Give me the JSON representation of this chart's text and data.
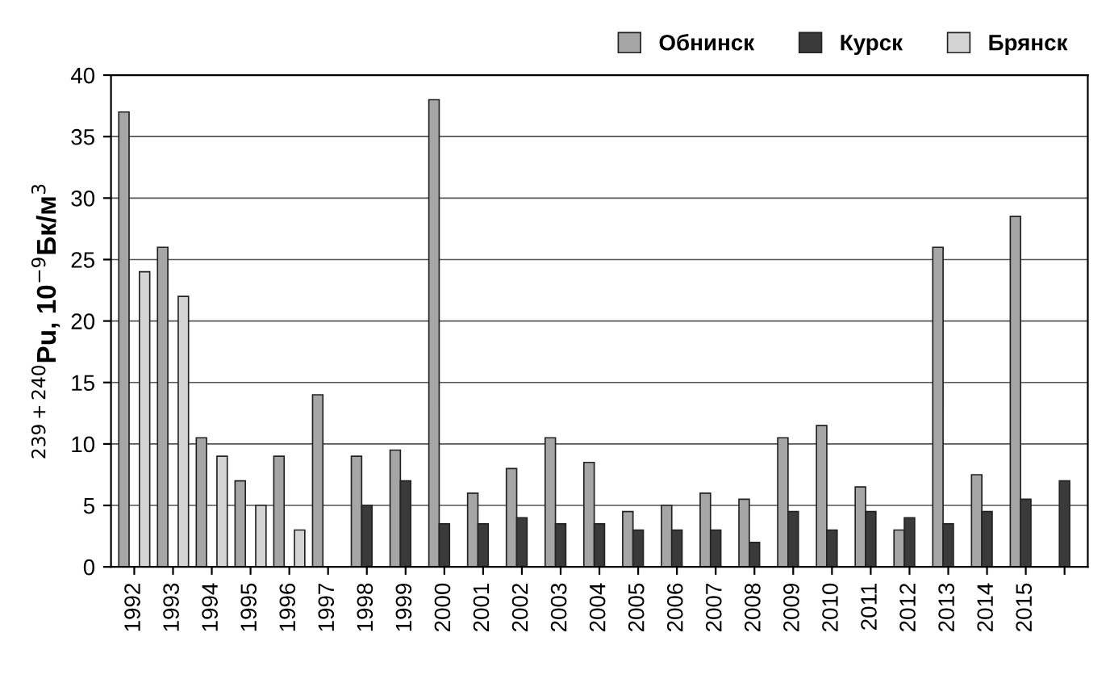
{
  "chart_data": {
    "type": "bar",
    "ylabel": "$^{239+240}$Pu, 10$^{−9}$Бк/м$^{3}$",
    "categories": [
      "1992",
      "1993",
      "1994",
      "1995",
      "1996",
      "1997",
      "1998",
      "1999",
      "2000",
      "2001",
      "2002",
      "2003",
      "2004",
      "2005",
      "2006",
      "2007",
      "2008",
      "2009",
      "2010",
      "2011",
      "2012",
      "2013",
      "2014",
      "2015",
      null
    ],
    "series": [
      {
        "name": "Обнинск",
        "color": "#a6a6a6",
        "values": [
          37,
          26,
          10.5,
          7,
          9,
          14,
          9,
          9.5,
          38,
          6,
          8,
          10.5,
          8.5,
          4.5,
          5,
          6,
          5.5,
          10.5,
          11.5,
          6.5,
          3,
          26,
          7.5,
          28.5,
          null
        ]
      },
      {
        "name": "Курск",
        "color": "#3a3a3a",
        "values": [
          null,
          null,
          null,
          null,
          null,
          null,
          5,
          7,
          3.5,
          3.5,
          4,
          3.5,
          3.5,
          3,
          3,
          3,
          2,
          4.5,
          3,
          4.5,
          4,
          3.5,
          4.5,
          5.5,
          7
        ]
      },
      {
        "name": "Брянск",
        "color": "#d4d4d4",
        "values": [
          24,
          22,
          9,
          5,
          3,
          null,
          null,
          null,
          null,
          null,
          null,
          null,
          null,
          null,
          null,
          null,
          null,
          null,
          null,
          null,
          null,
          null,
          null,
          null,
          null
        ]
      }
    ],
    "ylim": [
      0,
      40
    ],
    "yticks": [
      0,
      5,
      10,
      15,
      20,
      25,
      30,
      35,
      40
    ],
    "grid": "y",
    "legend": "top right"
  }
}
